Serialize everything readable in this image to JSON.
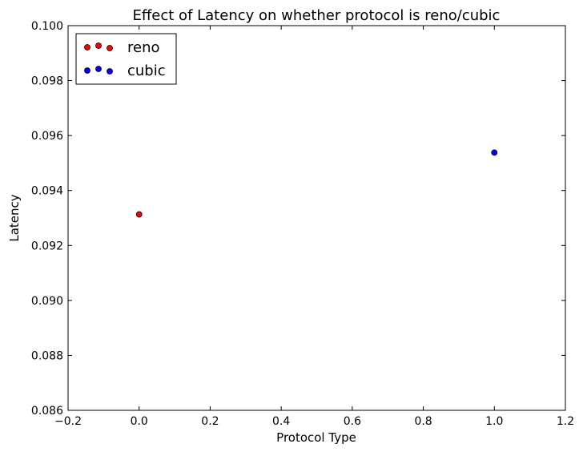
{
  "chart_data": {
    "type": "scatter",
    "title": "Effect of Latency on whether protocol is reno/cubic",
    "xlabel": "Protocol Type",
    "ylabel": "Latency",
    "xlim": [
      -0.2,
      1.2
    ],
    "ylim": [
      0.086,
      0.1
    ],
    "xticks": [
      "−0.2",
      "0.0",
      "0.2",
      "0.4",
      "0.6",
      "0.8",
      "1.0",
      "1.2"
    ],
    "yticks": [
      "0.086",
      "0.088",
      "0.090",
      "0.092",
      "0.094",
      "0.096",
      "0.098",
      "0.100"
    ],
    "grid": false,
    "legend_position": "top-left",
    "series": [
      {
        "name": "reno",
        "color": "#ff0000",
        "points": [
          {
            "x": 0.0,
            "y": 0.09313
          }
        ]
      },
      {
        "name": "cubic",
        "color": "#0000ff",
        "points": [
          {
            "x": 1.0,
            "y": 0.09538
          }
        ]
      }
    ]
  }
}
